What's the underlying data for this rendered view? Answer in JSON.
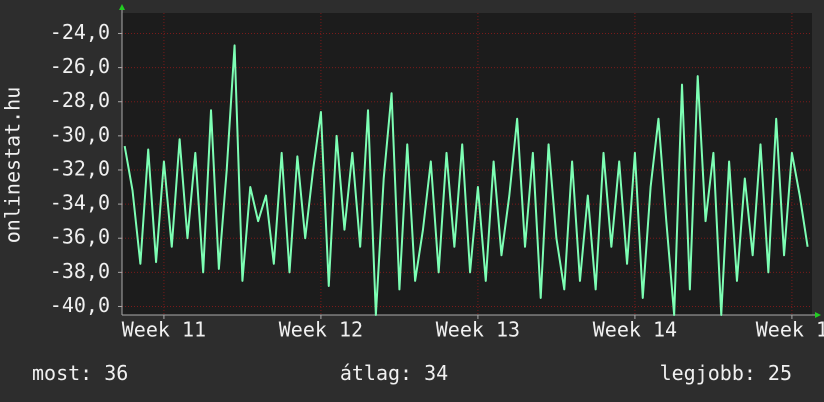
{
  "chart_data": {
    "type": "line",
    "ylabel": "onlinestat.hu",
    "x": [
      10.75,
      10.8,
      10.85,
      10.9,
      10.95,
      11.0,
      11.05,
      11.1,
      11.15,
      11.2,
      11.25,
      11.3,
      11.35,
      11.4,
      11.45,
      11.5,
      11.55,
      11.6,
      11.65,
      11.7,
      11.75,
      11.8,
      11.85,
      11.9,
      11.95,
      12.0,
      12.05,
      12.1,
      12.15,
      12.2,
      12.25,
      12.3,
      12.35,
      12.4,
      12.45,
      12.5,
      12.55,
      12.6,
      12.65,
      12.7,
      12.75,
      12.8,
      12.85,
      12.9,
      12.95,
      13.0,
      13.05,
      13.1,
      13.15,
      13.2,
      13.25,
      13.3,
      13.35,
      13.4,
      13.45,
      13.5,
      13.55,
      13.6,
      13.65,
      13.7,
      13.75,
      13.8,
      13.85,
      13.9,
      13.95,
      14.0,
      14.05,
      14.1,
      14.15,
      14.2,
      14.25,
      14.3,
      14.35,
      14.4,
      14.45,
      14.5,
      14.55,
      14.6,
      14.65,
      14.7,
      14.75,
      14.8,
      14.85,
      14.9,
      14.95,
      15.0,
      15.05,
      15.1
    ],
    "series": [
      {
        "color": "#7dffb4",
        "values": [
          -30.6,
          -33.2,
          -37.5,
          -30.8,
          -37.4,
          -31.5,
          -36.5,
          -30.2,
          -36.0,
          -31.0,
          -38.0,
          -28.5,
          -37.8,
          -32.0,
          -24.7,
          -38.5,
          -33.0,
          -35.0,
          -33.5,
          -37.5,
          -31.0,
          -38.0,
          -31.2,
          -36.0,
          -32.0,
          -28.6,
          -38.8,
          -30.0,
          -35.5,
          -31.0,
          -36.5,
          -28.5,
          -40.5,
          -32.5,
          -27.5,
          -39.0,
          -30.5,
          -38.5,
          -35.5,
          -31.5,
          -38.0,
          -31.0,
          -36.5,
          -30.5,
          -38.0,
          -33.0,
          -38.5,
          -31.5,
          -37.0,
          -33.5,
          -29.0,
          -36.5,
          -31.0,
          -39.5,
          -30.5,
          -36.0,
          -39.0,
          -31.5,
          -38.5,
          -33.5,
          -39.0,
          -31.0,
          -36.5,
          -31.5,
          -37.5,
          -31.0,
          -39.5,
          -33.0,
          -29.0,
          -35.0,
          -40.5,
          -27.0,
          -39.0,
          -26.5,
          -35.0,
          -31.0,
          -40.5,
          -31.5,
          -38.5,
          -32.5,
          -37.0,
          -30.5,
          -38.0,
          -29.0,
          -37.0,
          -31.0,
          -33.5,
          -36.5
        ]
      }
    ],
    "xlim": [
      10.733,
      15.128
    ],
    "xticks": [
      {
        "value": 11,
        "label": "Week 11"
      },
      {
        "value": 12,
        "label": "Week 12"
      },
      {
        "value": 13,
        "label": "Week 13"
      },
      {
        "value": 14,
        "label": "Week 14"
      },
      {
        "value": 15,
        "label": "Week 1"
      }
    ],
    "ylim": [
      -40.5,
      -22.8
    ],
    "yticks": [
      {
        "value": -40,
        "label": "-40,0"
      },
      {
        "value": -38,
        "label": "-38,0"
      },
      {
        "value": -36,
        "label": "-36,0"
      },
      {
        "value": -34,
        "label": "-34,0"
      },
      {
        "value": -32,
        "label": "-32,0"
      },
      {
        "value": -30,
        "label": "-30,0"
      },
      {
        "value": -28,
        "label": "-28,0"
      },
      {
        "value": -26,
        "label": "-26,0"
      },
      {
        "value": -24,
        "label": "-24,0"
      }
    ],
    "grid": true,
    "grid_color": "#7a1a1a"
  },
  "stats": [
    {
      "label": "most:",
      "value": 36
    },
    {
      "label": "átlag:",
      "value": 34
    },
    {
      "label": "legjobb:",
      "value": 25
    }
  ]
}
